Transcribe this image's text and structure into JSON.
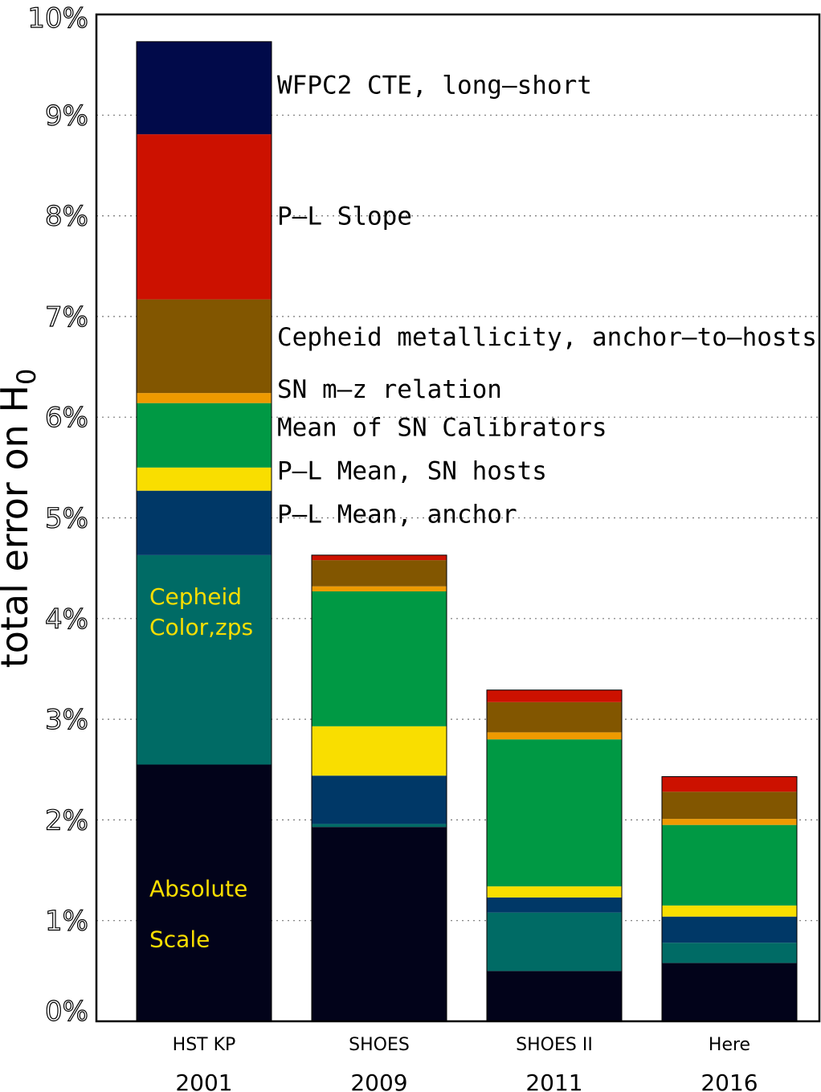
{
  "chart_data": {
    "type": "bar",
    "stacked": true,
    "ylabel": "total error on H",
    "ylabel_subscript": "0",
    "ylim": [
      0,
      10
    ],
    "y_ticks": [
      "0%",
      "1%",
      "2%",
      "3%",
      "4%",
      "5%",
      "6%",
      "7%",
      "8%",
      "9%",
      "10%"
    ],
    "grid": "horizontal dotted",
    "categories": [
      "HST KP",
      "SHOES",
      "SHOES II",
      "Here"
    ],
    "years": [
      "2001",
      "2009",
      "2011",
      "2016"
    ],
    "series": [
      {
        "name": "Absolute Scale",
        "color": "#02031a",
        "values": [
          2.55,
          1.93,
          0.5,
          0.58
        ]
      },
      {
        "name": "Cepheid Color,zps",
        "color": "#006b65",
        "values": [
          2.08,
          0.03,
          0.58,
          0.2
        ]
      },
      {
        "name": "P–L Mean, anchor",
        "color": "#003867",
        "values": [
          0.64,
          0.48,
          0.15,
          0.26
        ]
      },
      {
        "name": "P–L Mean, SN hosts",
        "color": "#f9de00",
        "values": [
          0.23,
          0.49,
          0.11,
          0.11
        ]
      },
      {
        "name": "Mean of SN Calibrators",
        "color": "#009944",
        "values": [
          0.64,
          1.34,
          1.46,
          0.8
        ]
      },
      {
        "name": "SN m–z relation",
        "color": "#ee9a00",
        "values": [
          0.1,
          0.05,
          0.07,
          0.06
        ]
      },
      {
        "name": "Cepheid metallicity, anchor–to–hosts",
        "color": "#825600",
        "values": [
          0.93,
          0.26,
          0.3,
          0.27
        ]
      },
      {
        "name": "P–L Slope",
        "color": "#cc1100",
        "values": [
          1.64,
          0.05,
          0.12,
          0.15
        ]
      },
      {
        "name": "WFPC2 CTE, long–short",
        "color": "#010a4a",
        "values": [
          0.92,
          0,
          0,
          0
        ]
      }
    ],
    "annotations": [
      {
        "text": "WFPC2 CTE, long–short",
        "y": 9.3
      },
      {
        "text": "P–L Slope",
        "y": 8.0
      },
      {
        "text": "Cepheid metallicity, anchor–to–hosts",
        "y": 6.8
      },
      {
        "text": "SN m–z relation",
        "y": 6.28
      },
      {
        "text": "Mean of SN Calibrators",
        "y": 5.9
      },
      {
        "text": "P–L Mean, SN hosts",
        "y": 5.47
      },
      {
        "text": "P–L Mean, anchor",
        "y": 5.04
      }
    ],
    "inner_labels": [
      {
        "text": "Cepheid",
        "y": 4.22,
        "color": "#f9de00"
      },
      {
        "text": "Color,zps",
        "y": 3.92,
        "color": "#f9de00"
      },
      {
        "text": "Absolute",
        "y": 1.32,
        "color": "#f9de00"
      },
      {
        "text": "Scale",
        "y": 0.82,
        "color": "#f9de00"
      }
    ]
  }
}
